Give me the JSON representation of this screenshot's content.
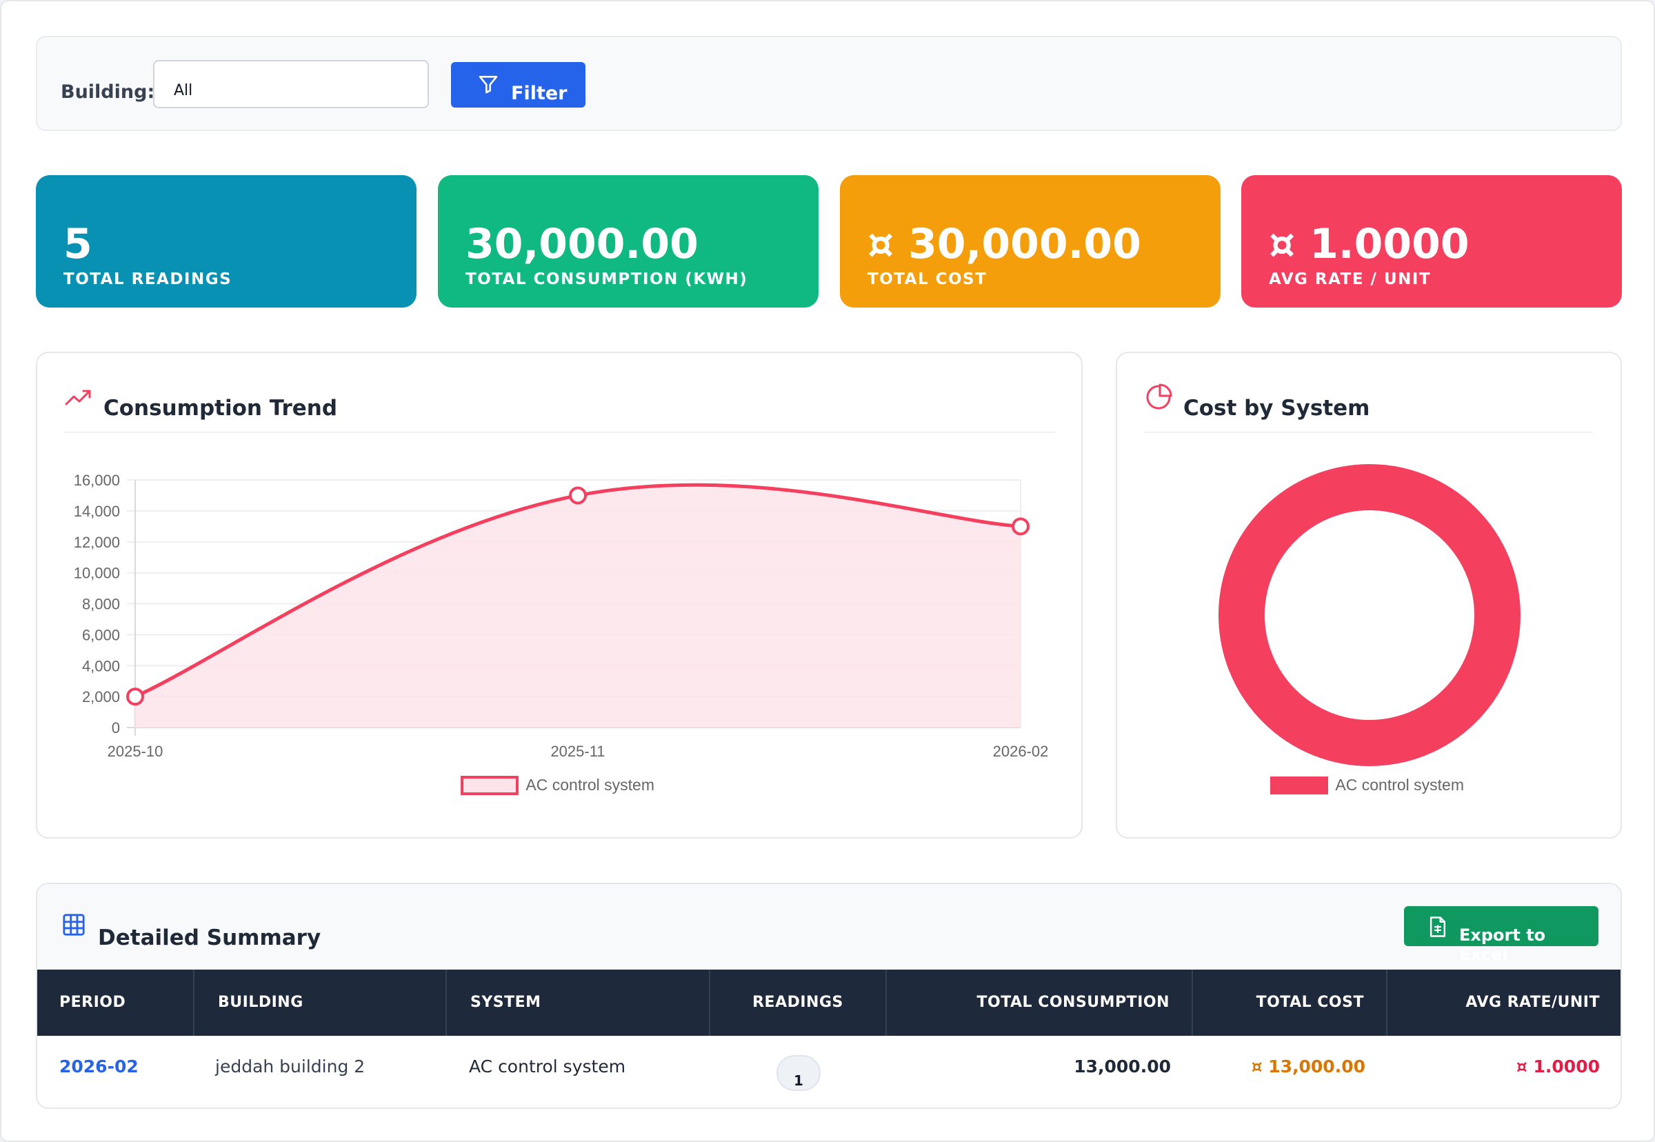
{
  "filter": {
    "label": "Building:",
    "value": "All",
    "button_label": "Filter"
  },
  "stats": [
    {
      "value": "5",
      "label": "TOTAL READINGS",
      "color": "#0891b2"
    },
    {
      "value": "30,000.00",
      "label": "TOTAL CONSUMPTION (KWH)",
      "color": "#10b981"
    },
    {
      "value": "¤ 30,000.00",
      "label": "TOTAL COST",
      "color": "#f59e0b"
    },
    {
      "value": "¤ 1.0000",
      "label": "AVG RATE / UNIT",
      "color": "#f43f5e"
    }
  ],
  "trend_panel": {
    "title": "Consumption Trend",
    "icon": "trending-up-icon"
  },
  "pie_panel": {
    "title": "Cost by System",
    "icon": "pie-chart-icon"
  },
  "chart_data": [
    {
      "type": "line",
      "x": [
        "2025-10",
        "2025-11",
        "2026-02"
      ],
      "series": [
        {
          "name": "AC control system",
          "values": [
            2000,
            15000,
            13000
          ],
          "color": "#f43f5e"
        }
      ],
      "ylim": [
        0,
        16000
      ],
      "yticks": [
        "0",
        "2,000",
        "4,000",
        "6,000",
        "8,000",
        "10,000",
        "12,000",
        "14,000",
        "16,000"
      ],
      "fill": true,
      "grid": true,
      "legend": "bottom"
    },
    {
      "type": "pie",
      "style": "doughnut",
      "categories": [
        "AC control system"
      ],
      "values": [
        30000
      ],
      "colors": [
        "#f43f5e"
      ],
      "legend": "bottom"
    }
  ],
  "summary": {
    "title": "Detailed Summary",
    "export_label": "Export to Excel",
    "columns": [
      "PERIOD",
      "BUILDING",
      "SYSTEM",
      "READINGS",
      "TOTAL CONSUMPTION",
      "TOTAL COST",
      "AVG RATE/UNIT"
    ],
    "rows": [
      {
        "period": "2026-02",
        "building": "jeddah building 2",
        "system": "AC control system",
        "readings": "1",
        "total_consumption": "13,000.00",
        "total_cost": "¤ 13,000.00",
        "avg_rate": "¤ 1.0000"
      }
    ]
  }
}
